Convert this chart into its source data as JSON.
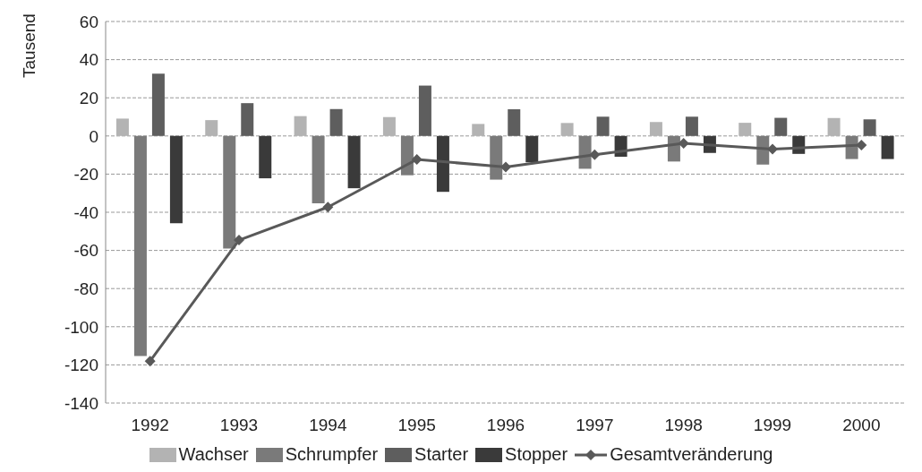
{
  "chart_data": {
    "type": "bar",
    "ylabel": "Tausend",
    "categories": [
      "1992",
      "1993",
      "1994",
      "1995",
      "1996",
      "1997",
      "1998",
      "1999",
      "2000"
    ],
    "series": [
      {
        "name": "Wachser",
        "color": "#b3b3b3",
        "values": [
          9.1,
          8.3,
          10.4,
          9.9,
          6.3,
          6.8,
          7.3,
          6.9,
          9.4
        ]
      },
      {
        "name": "Schrumpfer",
        "color": "#7a7a7a",
        "values": [
          -115.4,
          -59,
          -35.3,
          -20.6,
          -22.9,
          -17.2,
          -13.4,
          -15,
          -12.1
        ]
      },
      {
        "name": "Starter",
        "color": "#5e5e5e",
        "values": [
          32.7,
          17.2,
          14.1,
          26.4,
          14,
          10.1,
          10.1,
          9.5,
          8.7
        ]
      },
      {
        "name": "Stopper",
        "color": "#3a3a3a",
        "values": [
          -45.7,
          -22.2,
          -27.4,
          -29.3,
          -13.8,
          -10.9,
          -8.9,
          -9.4,
          -12.1
        ]
      },
      {
        "name": "Gesamtveränderung",
        "type": "line",
        "color": "#595959",
        "marker": "diamond",
        "values": [
          -118,
          -54.6,
          -37.3,
          -12.3,
          -16.3,
          -9.8,
          -3.9,
          -6.9,
          -4.8
        ]
      }
    ],
    "ylim": [
      -140,
      60
    ],
    "yticks": [
      -140,
      -120,
      -100,
      -80,
      -60,
      -40,
      -20,
      0,
      20,
      40,
      60
    ],
    "grid": "y",
    "legend": "bottom"
  }
}
